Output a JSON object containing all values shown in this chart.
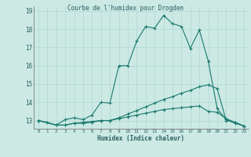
{
  "title": "Courbe de l'humidex pour Drogden",
  "xlabel": "Humidex (Indice chaleur)",
  "xlim": [
    -0.5,
    23.5
  ],
  "ylim": [
    12.55,
    19.25
  ],
  "yticks": [
    13,
    14,
    15,
    16,
    17,
    18,
    19
  ],
  "xticks": [
    0,
    1,
    2,
    3,
    4,
    5,
    6,
    7,
    8,
    9,
    10,
    11,
    12,
    13,
    14,
    15,
    16,
    17,
    18,
    19,
    20,
    21,
    22,
    23
  ],
  "bg_color": "#cce9e4",
  "grid_color": "#b0d8d2",
  "line_color": "#1a7a6e",
  "line1_x": [
    0,
    1,
    2,
    3,
    4,
    5,
    6,
    7,
    8,
    9,
    10,
    11,
    12,
    13,
    14,
    15,
    16,
    17,
    18,
    19,
    20,
    21,
    22,
    23
  ],
  "line1_y": [
    13.0,
    12.9,
    12.75,
    13.05,
    13.15,
    13.05,
    13.3,
    14.0,
    13.95,
    16.0,
    16.0,
    17.35,
    18.15,
    18.05,
    18.75,
    18.3,
    18.15,
    16.95,
    17.95,
    16.25,
    13.65,
    13.05,
    12.85,
    12.7
  ],
  "line2_x": [
    0,
    2,
    3,
    4,
    5,
    6,
    7,
    8,
    9,
    10,
    11,
    12,
    13,
    14,
    15,
    16,
    17,
    18,
    19,
    20,
    21,
    22,
    23
  ],
  "line2_y": [
    13.0,
    12.75,
    12.75,
    12.85,
    12.85,
    12.9,
    13.0,
    13.0,
    13.15,
    13.35,
    13.55,
    13.75,
    13.95,
    14.15,
    14.3,
    14.5,
    14.65,
    14.85,
    14.95,
    14.75,
    13.0,
    12.9,
    12.7
  ],
  "line3_x": [
    0,
    2,
    3,
    4,
    5,
    6,
    7,
    8,
    9,
    10,
    11,
    12,
    13,
    14,
    15,
    16,
    17,
    18,
    19,
    20,
    21,
    22,
    23
  ],
  "line3_y": [
    13.0,
    12.75,
    12.75,
    12.85,
    12.9,
    12.95,
    13.0,
    13.0,
    13.1,
    13.2,
    13.3,
    13.4,
    13.5,
    13.6,
    13.65,
    13.7,
    13.75,
    13.8,
    13.5,
    13.45,
    13.1,
    12.9,
    12.7
  ]
}
